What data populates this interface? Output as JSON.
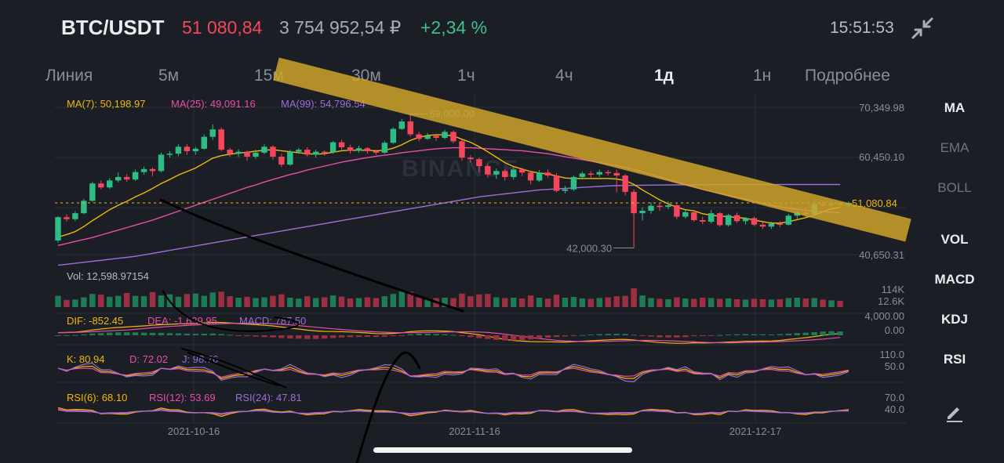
{
  "header": {
    "pair": "BTC/USDT",
    "price": "51 080,84",
    "price_rub": "3 754 952,54 ₽",
    "change": "+2,34 %",
    "time": "15:51:53"
  },
  "timeframes": [
    "Линия",
    "5м",
    "15м",
    "30м",
    "1ч",
    "4ч",
    "1д",
    "1н",
    "Подробнее"
  ],
  "active_timeframe": "1д",
  "indicators": [
    {
      "label": "MA",
      "active": true
    },
    {
      "label": "EMA",
      "active": false
    },
    {
      "label": "BOLL",
      "active": false
    },
    {
      "label": "VOL",
      "active": true
    },
    {
      "label": "MACD",
      "active": true
    },
    {
      "label": "KDJ",
      "active": true
    },
    {
      "label": "RSI",
      "active": true
    }
  ],
  "colors": {
    "up": "#2ebd85",
    "down": "#f6465d",
    "ma7": "#f0b90b",
    "ma25": "#e84fa7",
    "ma99": "#9b6fd9",
    "highlight": "#d4a82a"
  },
  "watermark": "BINANCE",
  "chart_data": {
    "type": "candlestick",
    "legend": {
      "ma7": "MA(7): 50,198.97",
      "ma25": "MA(25): 49,091.16",
      "ma99": "MA(99): 54,796.54"
    },
    "price_axis_labels": [
      "70,349.98",
      "60,450.10",
      "51,080.84",
      "40,650.31"
    ],
    "price_range": [
      40650.31,
      70349.98
    ],
    "max_annotation": "69,000.00",
    "min_annotation": "42,000.30",
    "current_price_label": "51,080.84",
    "x_tick_labels": [
      "2021-10-16",
      "2021-11-16",
      "2021-12-17"
    ],
    "candles": [
      [
        43500,
        48200,
        43100,
        48400
      ],
      [
        48200,
        47800,
        47300,
        48800
      ],
      [
        47800,
        49000,
        47400,
        49400
      ],
      [
        49000,
        51500,
        48800,
        51900
      ],
      [
        51500,
        55000,
        51300,
        55300
      ],
      [
        55000,
        54200,
        53800,
        55600
      ],
      [
        54200,
        55600,
        53900,
        56100
      ],
      [
        55600,
        56300,
        55200,
        57200
      ],
      [
        56300,
        55800,
        55300,
        56900
      ],
      [
        55800,
        57300,
        55500,
        57800
      ],
      [
        57300,
        57900,
        56800,
        58400
      ],
      [
        57900,
        57500,
        56500,
        58200
      ],
      [
        57500,
        60800,
        57200,
        61200
      ],
      [
        60800,
        61000,
        60200,
        61500
      ],
      [
        61000,
        62400,
        60500,
        62900
      ],
      [
        62400,
        61500,
        60800,
        62900
      ],
      [
        61500,
        62000,
        60800,
        62400
      ],
      [
        62000,
        64400,
        61800,
        64900
      ],
      [
        64400,
        65900,
        63800,
        66900
      ],
      [
        65900,
        61800,
        61500,
        66300
      ],
      [
        61800,
        61000,
        60400,
        62200
      ],
      [
        61000,
        61400,
        60300,
        61900
      ],
      [
        61400,
        60400,
        59600,
        61600
      ],
      [
        60400,
        61200,
        60000,
        61800
      ],
      [
        61200,
        62400,
        60900,
        62900
      ],
      [
        62400,
        60400,
        59800,
        62700
      ],
      [
        60400,
        58800,
        58300,
        61000
      ],
      [
        58800,
        61400,
        58600,
        61800
      ],
      [
        61400,
        61800,
        61000,
        62200
      ],
      [
        61800,
        60800,
        60400,
        62300
      ],
      [
        60800,
        61400,
        60200,
        61800
      ],
      [
        61400,
        61300,
        60600,
        61700
      ],
      [
        61300,
        63300,
        61000,
        63600
      ],
      [
        63300,
        62300,
        61800,
        63800
      ],
      [
        62300,
        61600,
        61000,
        62800
      ],
      [
        61600,
        62100,
        61200,
        62600
      ],
      [
        62100,
        61500,
        61000,
        62300
      ],
      [
        61500,
        61200,
        60800,
        61800
      ],
      [
        61200,
        63200,
        61000,
        63600
      ],
      [
        63200,
        66000,
        63000,
        66300
      ],
      [
        66000,
        67500,
        65800,
        68000
      ],
      [
        67500,
        64900,
        64500,
        69000
      ],
      [
        64900,
        64000,
        63500,
        65400
      ],
      [
        64000,
        64600,
        63800,
        65200
      ],
      [
        64600,
        64200,
        63600,
        65000
      ],
      [
        64200,
        65400,
        63900,
        65800
      ],
      [
        65400,
        63500,
        63100,
        65700
      ],
      [
        63500,
        60200,
        59600,
        63800
      ],
      [
        60200,
        59900,
        59200,
        60700
      ],
      [
        59900,
        58500,
        57200,
        60200
      ],
      [
        58500,
        56800,
        56200,
        58900
      ],
      [
        56800,
        57500,
        55900,
        58000
      ],
      [
        57500,
        56300,
        55600,
        57900
      ],
      [
        56300,
        57800,
        55800,
        58200
      ],
      [
        57800,
        57200,
        56500,
        58100
      ],
      [
        57200,
        55600,
        54800,
        57600
      ],
      [
        55600,
        57200,
        55300,
        57700
      ],
      [
        57200,
        56600,
        56100,
        57800
      ],
      [
        56600,
        53500,
        53200,
        57100
      ],
      [
        53500,
        53800,
        53000,
        54500
      ],
      [
        53800,
        56300,
        53500,
        56600
      ],
      [
        56300,
        57000,
        55800,
        57400
      ],
      [
        57000,
        56800,
        56200,
        57500
      ],
      [
        56800,
        57300,
        56300,
        57800
      ],
      [
        57300,
        57100,
        56600,
        57700
      ],
      [
        57100,
        56600,
        53200,
        57800
      ],
      [
        56600,
        53300,
        52600,
        56900
      ],
      [
        53300,
        49000,
        42000,
        53800
      ],
      [
        49000,
        49500,
        47500,
        50200
      ],
      [
        49500,
        50500,
        48900,
        51200
      ],
      [
        50500,
        50300,
        49500,
        50900
      ],
      [
        50300,
        50600,
        49800,
        51400
      ],
      [
        50600,
        48300,
        47800,
        50900
      ],
      [
        48300,
        49200,
        47900,
        49600
      ],
      [
        49200,
        47600,
        47300,
        49500
      ],
      [
        47600,
        47300,
        46800,
        48300
      ],
      [
        47300,
        49000,
        46900,
        49600
      ],
      [
        49000,
        46600,
        46300,
        49200
      ],
      [
        46600,
        48600,
        46300,
        48900
      ],
      [
        48600,
        47400,
        47000,
        49100
      ],
      [
        47400,
        48000,
        46700,
        48200
      ],
      [
        48000,
        46700,
        46400,
        48300
      ],
      [
        46700,
        46300,
        45800,
        47200
      ],
      [
        46300,
        46900,
        45800,
        47300
      ],
      [
        46900,
        46700,
        46200,
        47400
      ],
      [
        46700,
        48500,
        46500,
        48900
      ],
      [
        48500,
        49100,
        47800,
        49500
      ],
      [
        49100,
        48800,
        48300,
        50100
      ],
      [
        48800,
        50800,
        48600,
        51200
      ],
      [
        50800,
        50700,
        50300,
        51400
      ],
      [
        50700,
        50900,
        50200,
        51300
      ],
      [
        50900,
        50700,
        50400,
        51200
      ],
      [
        50700,
        51080,
        50300,
        51400
      ]
    ],
    "ma7": [
      44200,
      44700,
      45300,
      46300,
      47500,
      48600,
      49700,
      50600,
      51400,
      52300,
      53100,
      54000,
      55000,
      55800,
      56700,
      57400,
      58100,
      59100,
      60100,
      60600,
      60900,
      61100,
      61300,
      61500,
      61700,
      61800,
      61600,
      61400,
      61200,
      61000,
      60900,
      61000,
      61300,
      61600,
      61700,
      61700,
      61700,
      61600,
      61700,
      62100,
      62800,
      63700,
      64300,
      64700,
      64800,
      64800,
      64600,
      63900,
      63300,
      62400,
      61400,
      60300,
      59200,
      58400,
      57900,
      57400,
      57100,
      56900,
      56500,
      56100,
      56000,
      56000,
      56000,
      56000,
      56000,
      55900,
      55600,
      54800,
      53700,
      52700,
      51700,
      50900,
      50200,
      49700,
      49500,
      48900,
      48600,
      48400,
      48300,
      48100,
      48000,
      47600,
      47300,
      47000,
      47000,
      47300,
      47700,
      48100,
      48600,
      49300,
      49900,
      50198
    ],
    "ma25": [
      42500,
      42900,
      43300,
      43700,
      44100,
      44600,
      45100,
      45600,
      46100,
      46600,
      47100,
      47600,
      48200,
      48800,
      49400,
      50000,
      50600,
      51200,
      51800,
      52400,
      53000,
      53600,
      54200,
      54700,
      55300,
      55800,
      56300,
      56800,
      57200,
      57700,
      58100,
      58500,
      58900,
      59300,
      59600,
      59900,
      60200,
      60500,
      60700,
      60900,
      61200,
      61400,
      61600,
      61800,
      62000,
      62100,
      62200,
      62200,
      62200,
      62100,
      62000,
      61900,
      61800,
      61700,
      61600,
      61400,
      61200,
      61000,
      60700,
      60400,
      60100,
      59800,
      59500,
      59200,
      58900,
      58600,
      58200,
      57800,
      57300,
      56800,
      56300,
      55800,
      55300,
      54800,
      54300,
      53800,
      53400,
      53000,
      52600,
      52200,
      51800,
      51400,
      51000,
      50600,
      50300,
      50000,
      49800,
      49600,
      49400,
      49300,
      49200,
      49091
    ],
    "ma99": [
      38500,
      38700,
      38900,
      39100,
      39300,
      39500,
      39700,
      39900,
      40100,
      40300,
      40600,
      40900,
      41200,
      41500,
      41800,
      42100,
      42400,
      42700,
      43000,
      43300,
      43600,
      43900,
      44200,
      44500,
      44800,
      45100,
      45400,
      45700,
      46000,
      46300,
      46600,
      46900,
      47200,
      47500,
      47800,
      48100,
      48400,
      48700,
      49000,
      49300,
      49600,
      49900,
      50200,
      50500,
      50800,
      51100,
      51400,
      51700,
      52000,
      52300,
      52500,
      52700,
      52900,
      53100,
      53300,
      53500,
      53700,
      53800,
      53900,
      54000,
      54100,
      54200,
      54300,
      54400,
      54500,
      54550,
      54600,
      54620,
      54640,
      54660,
      54680,
      54700,
      54710,
      54720,
      54730,
      54740,
      54750,
      54755,
      54760,
      54765,
      54770,
      54775,
      54778,
      54781,
      54784,
      54787,
      54790,
      54792,
      54794,
      54795,
      54796,
      54796
    ],
    "volume": {
      "label": "Vol: 12,598.97154",
      "axis_labels": [
        "114K",
        "12.6K"
      ],
      "values": [
        60,
        38,
        40,
        52,
        70,
        66,
        55,
        60,
        75,
        60,
        58,
        80,
        62,
        68,
        55,
        70,
        72,
        60,
        78,
        82,
        58,
        50,
        55,
        48,
        52,
        60,
        68,
        50,
        45,
        58,
        48,
        52,
        62,
        56,
        46,
        48,
        52,
        48,
        58,
        70,
        90,
        82,
        52,
        46,
        48,
        50,
        48,
        72,
        58,
        68,
        70,
        52,
        48,
        50,
        46,
        62,
        50,
        45,
        66,
        50,
        54,
        46,
        44,
        48,
        52,
        58,
        60,
        100,
        62,
        48,
        44,
        42,
        52,
        46,
        44,
        50,
        48,
        44,
        46,
        42,
        40,
        44,
        42,
        40,
        42,
        48,
        50,
        46,
        48,
        40,
        36,
        33
      ]
    },
    "macd": {
      "legend": {
        "dif": "DIF: -852.45",
        "dea": "DEA: -1,639.95",
        "macd": "MACD: 787.50"
      },
      "axis_labels": [
        "4,000.00",
        "0.00"
      ]
    },
    "kdj": {
      "legend": {
        "k": "K: 80.94",
        "d": "D: 72.02",
        "j": "J: 98.76"
      },
      "axis_labels": [
        "110.0",
        "50.0"
      ]
    },
    "rsi": {
      "legend": {
        "rsi6": "RSI(6): 68.10",
        "rsi12": "RSI(12): 53.69",
        "rsi24": "RSI(24): 47.81"
      },
      "axis_labels": [
        "70.0",
        "40.0"
      ]
    }
  }
}
